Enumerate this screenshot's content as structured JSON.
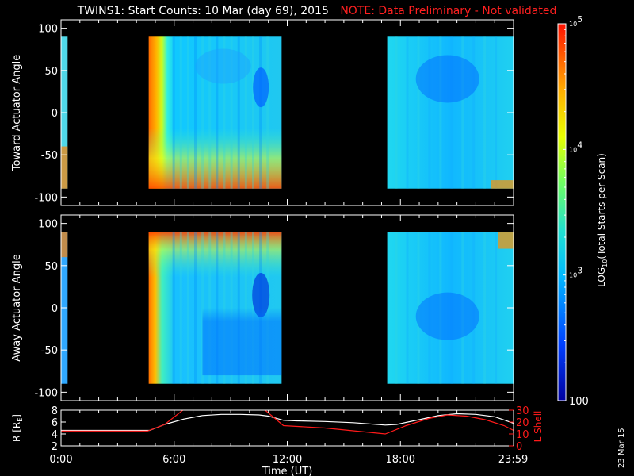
{
  "title": "TWINS1: Start Counts: 10 Mar (day  69), 2015",
  "note": "NOTE: Data Preliminary - Not validated",
  "datestamp": "23 Mar 15",
  "colors": {
    "background": "#000000",
    "note": "#ff2020",
    "r_line": "#ffffff",
    "lshell_line": "#ff1a1a",
    "axes": "#ffffff"
  },
  "chart_data": [
    {
      "type": "heatmap",
      "name": "toward",
      "ylabel": "Toward Actuator Angle",
      "ylim": [
        -110,
        110
      ],
      "yticks": [
        "100",
        "50",
        "0",
        "-50",
        "-100"
      ],
      "ytick_values": [
        100,
        50,
        0,
        -50,
        -100
      ],
      "xlim": [
        0,
        24
      ],
      "angle_range": [
        -90,
        90
      ],
      "data_intervals_hours": [
        [
          0.0,
          0.35
        ],
        [
          4.65,
          11.7
        ],
        [
          17.3,
          24.0
        ]
      ]
    },
    {
      "type": "heatmap",
      "name": "away",
      "ylabel": "Away Actuator Angle",
      "ylim": [
        -110,
        110
      ],
      "yticks": [
        "100",
        "50",
        "0",
        "-50",
        "-100"
      ],
      "ytick_values": [
        100,
        50,
        0,
        -50,
        -100
      ],
      "xlim": [
        0,
        24
      ],
      "angle_range": [
        -90,
        90
      ],
      "data_intervals_hours": [
        [
          0.0,
          0.35
        ],
        [
          4.65,
          11.7
        ],
        [
          17.3,
          24.0
        ]
      ]
    },
    {
      "type": "line",
      "name": "orbit",
      "ylabel_left": "R [R",
      "ylabel_left_sub": "E",
      "ylabel_left_end": "]",
      "ylabel_right": "L Shell",
      "xlabel": "Time (UT)",
      "xlim": [
        0,
        24
      ],
      "ylim_left": [
        2,
        8
      ],
      "ylim_right": [
        0,
        30
      ],
      "yticks_left": [
        "8",
        "6",
        "4",
        "2"
      ],
      "ytick_values_left": [
        8,
        6,
        4,
        2
      ],
      "yticks_right": [
        "30",
        "20",
        "10",
        "0"
      ],
      "ytick_values_right": [
        30,
        20,
        10,
        0
      ],
      "xticks": [
        "0:00",
        "6:00",
        "12:00",
        "18:00",
        "23:59"
      ],
      "xtick_values": [
        0,
        6,
        12,
        18,
        23.98
      ],
      "series": [
        {
          "axis": "left",
          "x": [
            0,
            1,
            2,
            3,
            4,
            4.7,
            5.5,
            6.5,
            7.5,
            8.5,
            9.5,
            10.5,
            11.0,
            11.8,
            12.5,
            14,
            15.5,
            17.2,
            17.8,
            19,
            20,
            21,
            22,
            23,
            24
          ],
          "y": [
            4.6,
            4.6,
            4.6,
            4.6,
            4.6,
            4.6,
            5.6,
            6.5,
            7.1,
            7.3,
            7.3,
            7.2,
            7.0,
            6.3,
            6.2,
            6.1,
            5.9,
            5.5,
            5.6,
            6.4,
            7.1,
            7.4,
            7.3,
            6.9,
            5.8
          ]
        },
        {
          "axis": "right",
          "x": [
            0,
            4.6,
            5.5,
            6.7,
            10.6,
            11.8,
            14,
            17.2,
            18.3,
            19.5,
            20.5,
            21.5,
            22.5,
            23.5,
            24
          ],
          "y": [
            12.5,
            12.5,
            18,
            33,
            33,
            17,
            15,
            10,
            17,
            23,
            26,
            25,
            22,
            17,
            13
          ]
        }
      ]
    }
  ],
  "colorbar": {
    "label": "LOG",
    "label_sub": "10",
    "label_rest": "(Total Starts per Scan)",
    "ticks": [
      {
        "base": "10",
        "exp": "5",
        "value": 5
      },
      {
        "base": "10",
        "exp": "4",
        "value": 4
      },
      {
        "base": "10",
        "exp": "3",
        "value": 3
      },
      {
        "base": "100",
        "exp": "",
        "value": 2
      }
    ],
    "range": [
      2,
      5
    ]
  }
}
